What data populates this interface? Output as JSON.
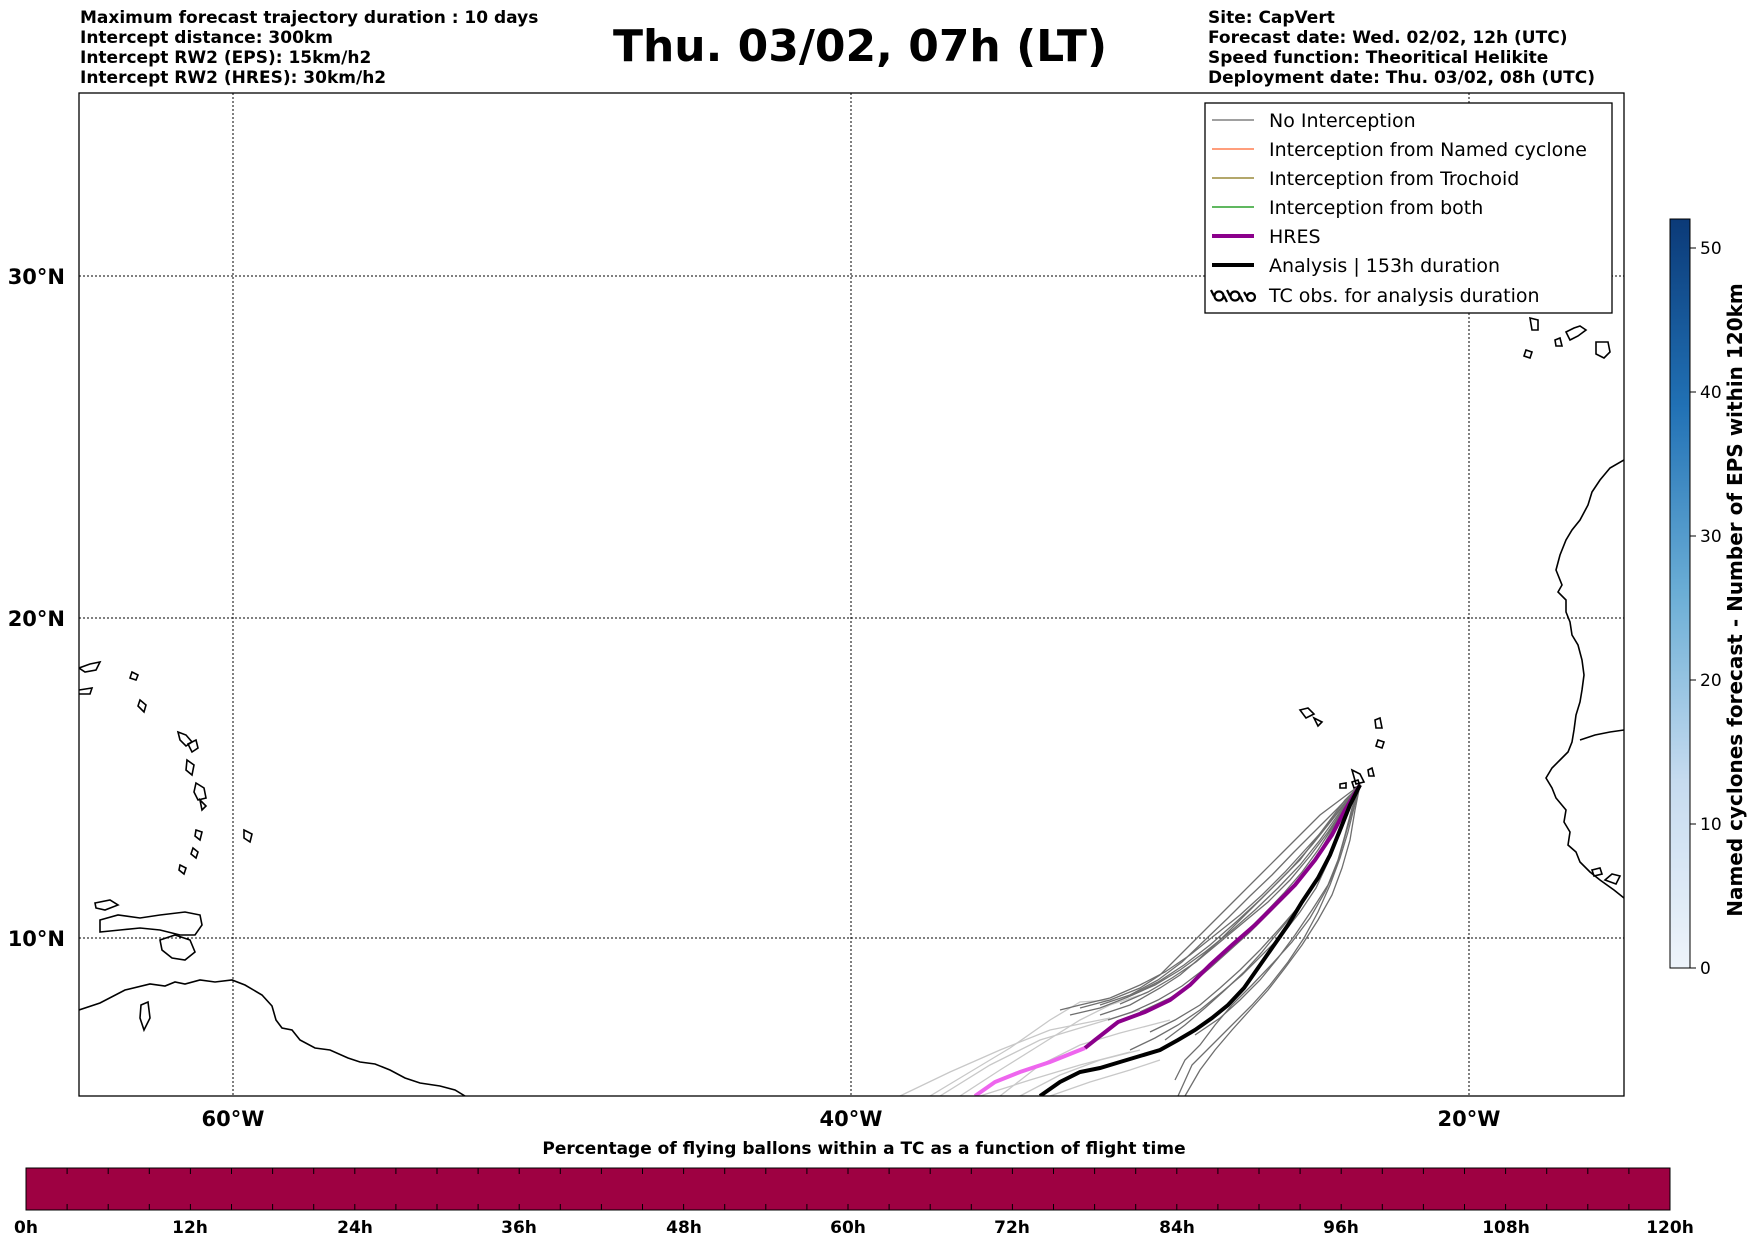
{
  "header": {
    "title": "Thu. 03/02, 07h (LT)",
    "left_info": [
      "Maximum forecast trajectory duration : 10 days",
      "Intercept distance: 300km",
      "Intercept RW2 (EPS):  15km/h2",
      "Intercept RW2 (HRES): 30km/h2"
    ],
    "right_info": [
      "Site: CapVert",
      "Forecast date: Wed. 02/02, 12h (UTC)",
      "Speed function: Theoritical Helikite",
      "Deployment date: Thu. 03/02, 08h (UTC)"
    ]
  },
  "map": {
    "lat_labels": [
      "30°N",
      "20°N",
      "10°N"
    ],
    "lon_labels": [
      "60°W",
      "40°W",
      "20°W"
    ],
    "legend": [
      {
        "label": "No Interception",
        "color": "#808080",
        "style": "thin-line",
        "icon": "line"
      },
      {
        "label": "Interception from Named cyclone",
        "color": "#ff7f50",
        "style": "thin-line",
        "icon": "line"
      },
      {
        "label": "Interception from Trochoid",
        "color": "#9a8a3a",
        "style": "thin-line",
        "icon": "line"
      },
      {
        "label": "Interception from both",
        "color": "#2ca02c",
        "style": "thin-line",
        "icon": "line"
      },
      {
        "label": "HRES",
        "color": "#8b008b",
        "style": "thick-line",
        "icon": "line"
      },
      {
        "label": "Analysis | 153h duration",
        "color": "#000000",
        "style": "thick-line",
        "icon": "line"
      },
      {
        "label": "TC obs. for analysis duration",
        "color": "#000000",
        "style": "symbol",
        "icon": "cyclone-symbols-icon"
      }
    ]
  },
  "colorbar_right": {
    "label": "Named cyclones forecast - Number of EPS within 120km",
    "ticks": [
      "0",
      "10",
      "20",
      "30",
      "40",
      "50"
    ],
    "range": [
      0,
      52
    ],
    "color_low": "#e8f0fa",
    "color_high": "#0b3a78"
  },
  "colorbar_bottom": {
    "title": "Percentage of flying ballons within a TC as a function of flight time",
    "ticks": [
      "0h",
      "12h",
      "24h",
      "36h",
      "48h",
      "60h",
      "72h",
      "84h",
      "96h",
      "108h",
      "120h"
    ],
    "fill_color": "#9e0142"
  }
}
